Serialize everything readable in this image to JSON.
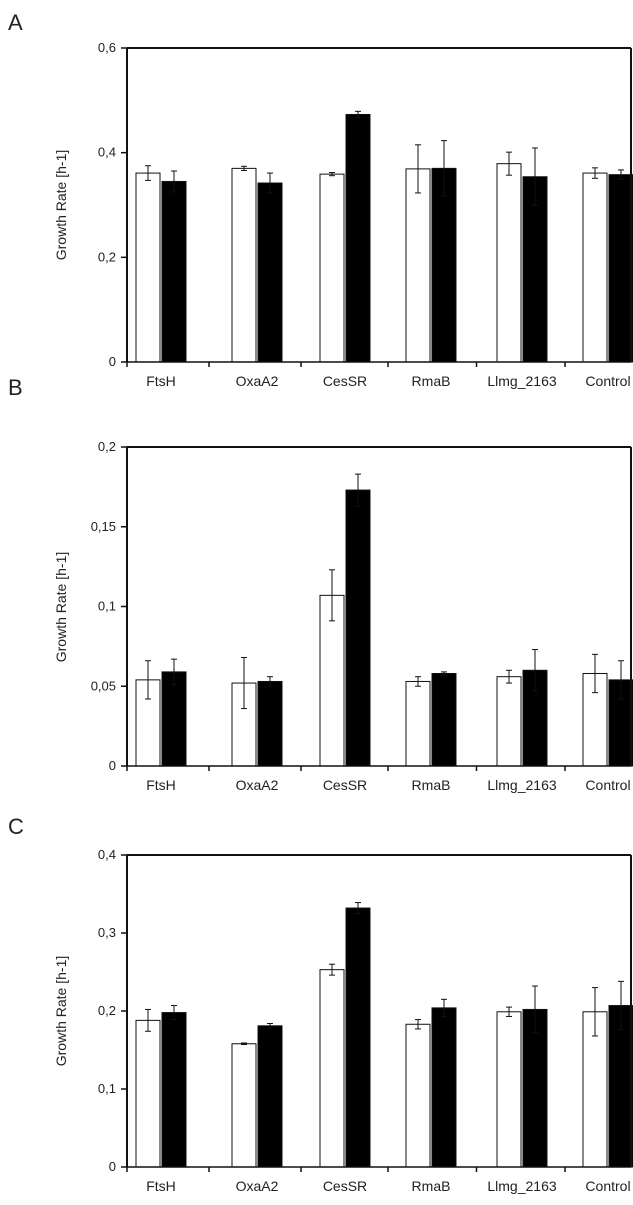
{
  "chart_data": [
    {
      "type": "bar",
      "panel": "A",
      "ylabel": "Growth Rate [h-1]",
      "ylim": [
        0,
        0.6
      ],
      "yticks": [
        "0",
        "0,2",
        "0,4",
        "0,6"
      ],
      "ytick_values": [
        0,
        0.2,
        0.4,
        0.6
      ],
      "categories": [
        "FtsH",
        "OxaA2",
        "CesSR",
        "RmaB",
        "Llmg_2163",
        "Control"
      ],
      "series": [
        {
          "fill": "white",
          "values": [
            0.361,
            0.37,
            0.359,
            0.369,
            0.379,
            0.361
          ],
          "errors": [
            0.014,
            0.004,
            0.003,
            0.046,
            0.022,
            0.01
          ]
        },
        {
          "fill": "black",
          "values": [
            0.345,
            0.342,
            0.473,
            0.37,
            0.354,
            0.358
          ],
          "errors": [
            0.02,
            0.019,
            0.006,
            0.053,
            0.055,
            0.009
          ]
        }
      ],
      "grid": false
    },
    {
      "type": "bar",
      "panel": "B",
      "ylabel": "Growth Rate [h-1]",
      "ylim": [
        0,
        0.2
      ],
      "yticks": [
        "0",
        "0,05",
        "0,1",
        "0,15",
        "0,2"
      ],
      "ytick_values": [
        0,
        0.05,
        0.1,
        0.15,
        0.2
      ],
      "categories": [
        "FtsH",
        "OxaA2",
        "CesSR",
        "RmaB",
        "Llmg_2163",
        "Control"
      ],
      "series": [
        {
          "fill": "white",
          "values": [
            0.054,
            0.052,
            0.107,
            0.053,
            0.056,
            0.058
          ],
          "errors": [
            0.012,
            0.016,
            0.016,
            0.003,
            0.004,
            0.012
          ]
        },
        {
          "fill": "black",
          "values": [
            0.059,
            0.053,
            0.173,
            0.058,
            0.06,
            0.054
          ],
          "errors": [
            0.008,
            0.003,
            0.01,
            0.001,
            0.013,
            0.012
          ]
        }
      ],
      "grid": false
    },
    {
      "type": "bar",
      "panel": "C",
      "ylabel": "Growth Rate [h-1]",
      "ylim": [
        0,
        0.4
      ],
      "yticks": [
        "0",
        "0,1",
        "0,2",
        "0,3",
        "0,4"
      ],
      "ytick_values": [
        0,
        0.1,
        0.2,
        0.3,
        0.4
      ],
      "categories": [
        "FtsH",
        "OxaA2",
        "CesSR",
        "RmaB",
        "Llmg_2163",
        "Control"
      ],
      "series": [
        {
          "fill": "white",
          "values": [
            0.188,
            0.158,
            0.253,
            0.183,
            0.199,
            0.199
          ],
          "errors": [
            0.014,
            0.001,
            0.007,
            0.006,
            0.006,
            0.031
          ]
        },
        {
          "fill": "black",
          "values": [
            0.198,
            0.181,
            0.332,
            0.204,
            0.202,
            0.207
          ],
          "errors": [
            0.009,
            0.003,
            0.007,
            0.011,
            0.03,
            0.031
          ]
        }
      ],
      "grid": false
    }
  ],
  "colors": {
    "axis": "#111111",
    "bar_white": "#ffffff",
    "bar_black": "#000000",
    "text": "#222222"
  }
}
